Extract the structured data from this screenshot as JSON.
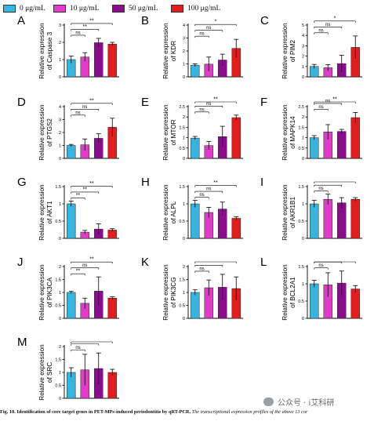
{
  "legend": [
    {
      "label": "0 μg/mL",
      "color": "#35b6e0"
    },
    {
      "label": "10 μg/mL",
      "color": "#e23bc9"
    },
    {
      "label": "50 μg/mL",
      "color": "#8a0e8c"
    },
    {
      "label": "100 μg/mL",
      "color": "#e31d1d"
    }
  ],
  "caption": {
    "label": "Fig. 10.",
    "title": "Identification of core target genes in PET-MPs-induced periodontitis by qRT-PCR.",
    "body": "The transcriptional expression profiles of the above 13 cor"
  },
  "watermark": {
    "text": "公众号 · i艾科研"
  },
  "chart_data": [
    {
      "type": "bar",
      "panel": "A",
      "ylabel": "Relative expression",
      "ylabel2": "of Caspase 3",
      "ylim": [
        0,
        3
      ],
      "yticks": [
        0,
        1,
        2,
        3
      ],
      "categories": [
        "0 μg/mL",
        "10 μg/mL",
        "50 μg/mL",
        "100 μg/mL"
      ],
      "values": [
        1.0,
        1.15,
        1.98,
        1.9
      ],
      "errors": [
        0.2,
        0.25,
        0.25,
        0.1
      ],
      "annotations": [
        {
          "from": 0,
          "to": 1,
          "label": "ns"
        },
        {
          "from": 0,
          "to": 2,
          "label": "**"
        },
        {
          "from": 0,
          "to": 3,
          "label": "**"
        }
      ]
    },
    {
      "type": "bar",
      "panel": "B",
      "ylabel": "Relative expression",
      "ylabel2": "of KDR",
      "ylim": [
        0,
        4
      ],
      "yticks": [
        0,
        1,
        2,
        3,
        4
      ],
      "categories": [
        "0 μg/mL",
        "10 μg/mL",
        "50 μg/mL",
        "100 μg/mL"
      ],
      "values": [
        0.9,
        0.98,
        1.3,
        2.2
      ],
      "errors": [
        0.1,
        0.55,
        0.45,
        0.7
      ],
      "annotations": [
        {
          "from": 0,
          "to": 1,
          "label": "ns"
        },
        {
          "from": 0,
          "to": 2,
          "label": "ns"
        },
        {
          "from": 0,
          "to": 3,
          "label": "*"
        }
      ]
    },
    {
      "type": "bar",
      "panel": "C",
      "ylabel": "Relative expression",
      "ylabel2": "of PIM2",
      "ylim": [
        0,
        5
      ],
      "yticks": [
        0,
        1,
        2,
        3,
        4,
        5
      ],
      "categories": [
        "0 μg/mL",
        "10 μg/mL",
        "50 μg/mL",
        "100 μg/mL"
      ],
      "values": [
        1.0,
        0.88,
        1.28,
        2.85
      ],
      "errors": [
        0.2,
        0.3,
        0.8,
        1.1
      ],
      "annotations": [
        {
          "from": 0,
          "to": 1,
          "label": "ns"
        },
        {
          "from": 0,
          "to": 2,
          "label": "ns"
        },
        {
          "from": 0,
          "to": 3,
          "label": "*"
        }
      ]
    },
    {
      "type": "bar",
      "panel": "D",
      "ylabel": "Relative expression",
      "ylabel2": "of PTGS2",
      "ylim": [
        0,
        4
      ],
      "yticks": [
        0,
        1,
        2,
        3,
        4
      ],
      "categories": [
        "0 μg/mL",
        "10 μg/mL",
        "50 μg/mL",
        "100 μg/mL"
      ],
      "values": [
        1.0,
        1.05,
        1.55,
        2.4
      ],
      "errors": [
        0.08,
        0.45,
        0.35,
        0.7
      ],
      "annotations": [
        {
          "from": 0,
          "to": 1,
          "label": "ns"
        },
        {
          "from": 0,
          "to": 2,
          "label": "ns"
        },
        {
          "from": 0,
          "to": 3,
          "label": "**"
        }
      ]
    },
    {
      "type": "bar",
      "panel": "E",
      "ylabel": "Relative expression",
      "ylabel2": "of MTOR",
      "ylim": [
        0,
        2.5
      ],
      "yticks": [
        0,
        0.5,
        1,
        1.5,
        2,
        2.5
      ],
      "categories": [
        "0 μg/mL",
        "10 μg/mL",
        "50 μg/mL",
        "100 μg/mL"
      ],
      "values": [
        0.98,
        0.62,
        1.05,
        1.97
      ],
      "errors": [
        0.08,
        0.2,
        0.5,
        0.12
      ],
      "annotations": [
        {
          "from": 0,
          "to": 1,
          "label": "ns"
        },
        {
          "from": 0,
          "to": 2,
          "label": "ns"
        },
        {
          "from": 0,
          "to": 3,
          "label": "**"
        }
      ]
    },
    {
      "type": "bar",
      "panel": "F",
      "ylabel": "Relative expression",
      "ylabel2": "of MAPK14",
      "ylim": [
        0,
        2.5
      ],
      "yticks": [
        0,
        0.5,
        1,
        1.5,
        2,
        2.5
      ],
      "categories": [
        "0 μg/mL",
        "10 μg/mL",
        "50 μg/mL",
        "100 μg/mL"
      ],
      "values": [
        1.0,
        1.28,
        1.3,
        1.97
      ],
      "errors": [
        0.1,
        0.35,
        0.1,
        0.25
      ],
      "annotations": [
        {
          "from": 0,
          "to": 1,
          "label": "ns"
        },
        {
          "from": 0,
          "to": 2,
          "label": "ns"
        },
        {
          "from": 0,
          "to": 3,
          "label": "**"
        }
      ]
    },
    {
      "type": "bar",
      "panel": "G",
      "ylabel": "Relative expression",
      "ylabel2": "of AKT1",
      "ylim": [
        0,
        1.5
      ],
      "yticks": [
        0,
        0.5,
        1,
        1.5
      ],
      "categories": [
        "0 μg/mL",
        "10 μg/mL",
        "50 μg/mL",
        "100 μg/mL"
      ],
      "values": [
        1.0,
        0.18,
        0.27,
        0.24
      ],
      "errors": [
        0.08,
        0.05,
        0.15,
        0.04
      ],
      "annotations": [
        {
          "from": 0,
          "to": 1,
          "label": "**"
        },
        {
          "from": 0,
          "to": 2,
          "label": "**"
        },
        {
          "from": 0,
          "to": 3,
          "label": "**"
        }
      ]
    },
    {
      "type": "bar",
      "panel": "H",
      "ylabel": "Relative expression",
      "ylabel2": "of ALPL",
      "ylim": [
        0,
        1.5
      ],
      "yticks": [
        0,
        0.5,
        1,
        1.5
      ],
      "categories": [
        "0 μg/mL",
        "10 μg/mL",
        "50 μg/mL",
        "100 μg/mL"
      ],
      "values": [
        1.0,
        0.75,
        0.85,
        0.58
      ],
      "errors": [
        0.1,
        0.15,
        0.2,
        0.05
      ],
      "annotations": [
        {
          "from": 0,
          "to": 1,
          "label": "ns"
        },
        {
          "from": 0,
          "to": 2,
          "label": "ns"
        },
        {
          "from": 0,
          "to": 3,
          "label": "**"
        }
      ]
    },
    {
      "type": "bar",
      "panel": "I",
      "ylabel": "Relative expression",
      "ylabel2": "of AKR1B1",
      "ylim": [
        0,
        1.5
      ],
      "yticks": [
        0,
        0.5,
        1,
        1.5
      ],
      "categories": [
        "0 μg/mL",
        "10 μg/mL",
        "50 μg/mL",
        "100 μg/mL"
      ],
      "values": [
        1.0,
        1.13,
        1.03,
        1.13
      ],
      "errors": [
        0.1,
        0.15,
        0.15,
        0.05
      ],
      "annotations": [
        {
          "from": 0,
          "to": 1,
          "label": "ns"
        },
        {
          "from": 0,
          "to": 2,
          "label": ""
        },
        {
          "from": 0,
          "to": 3,
          "label": ""
        }
      ]
    },
    {
      "type": "bar",
      "panel": "J",
      "ylabel": "Relative expression",
      "ylabel2": "of PIK3CA",
      "ylim": [
        0,
        2.0
      ],
      "yticks": [
        0,
        0.5,
        1,
        1.5,
        2
      ],
      "categories": [
        "0 μg/mL",
        "10 μg/mL",
        "50 μg/mL",
        "100 μg/mL"
      ],
      "values": [
        1.0,
        0.58,
        1.05,
        0.78
      ],
      "errors": [
        0.04,
        0.2,
        0.55,
        0.05
      ],
      "annotations": [
        {
          "from": 0,
          "to": 1,
          "label": "**"
        },
        {
          "from": 0,
          "to": 2,
          "label": "ns"
        },
        {
          "from": 0,
          "to": 3,
          "label": "**"
        }
      ]
    },
    {
      "type": "bar",
      "panel": "K",
      "ylabel": "Relative expression",
      "ylabel2": "of PIK3CG",
      "ylim": [
        0,
        2.0
      ],
      "yticks": [
        0,
        0.5,
        1,
        1.5,
        2
      ],
      "categories": [
        "0 μg/mL",
        "10 μg/mL",
        "50 μg/mL",
        "100 μg/mL"
      ],
      "values": [
        1.0,
        1.18,
        1.2,
        1.15
      ],
      "errors": [
        0.1,
        0.3,
        0.5,
        0.45
      ],
      "annotations": [
        {
          "from": 0,
          "to": 1,
          "label": "ns"
        },
        {
          "from": 0,
          "to": 2,
          "label": ""
        },
        {
          "from": 0,
          "to": 3,
          "label": ""
        }
      ]
    },
    {
      "type": "bar",
      "panel": "L",
      "ylabel": "Relative expression",
      "ylabel2": "of BCL2A1",
      "ylim": [
        0,
        1.5
      ],
      "yticks": [
        0,
        0.5,
        1,
        1.5
      ],
      "categories": [
        "0 μg/mL",
        "10 μg/mL",
        "50 μg/mL",
        "100 μg/mL"
      ],
      "values": [
        1.0,
        0.97,
        1.02,
        0.85
      ],
      "errors": [
        0.1,
        0.35,
        0.35,
        0.1
      ],
      "annotations": [
        {
          "from": 0,
          "to": 1,
          "label": "ns"
        },
        {
          "from": 0,
          "to": 2,
          "label": ""
        },
        {
          "from": 0,
          "to": 3,
          "label": ""
        }
      ]
    },
    {
      "type": "bar",
      "panel": "M",
      "ylabel": "Relative expression",
      "ylabel2": "of SRC",
      "ylim": [
        0,
        2.0
      ],
      "yticks": [
        0,
        0.5,
        1,
        1.5,
        2
      ],
      "categories": [
        "0 μg/mL",
        "10 μg/mL",
        "50 μg/mL",
        "100 μg/mL"
      ],
      "values": [
        1.0,
        1.1,
        1.15,
        1.0
      ],
      "errors": [
        0.18,
        0.6,
        0.6,
        0.12
      ],
      "annotations": [
        {
          "from": 0,
          "to": 1,
          "label": "ns"
        },
        {
          "from": 0,
          "to": 2,
          "label": ""
        },
        {
          "from": 0,
          "to": 3,
          "label": ""
        }
      ]
    }
  ]
}
